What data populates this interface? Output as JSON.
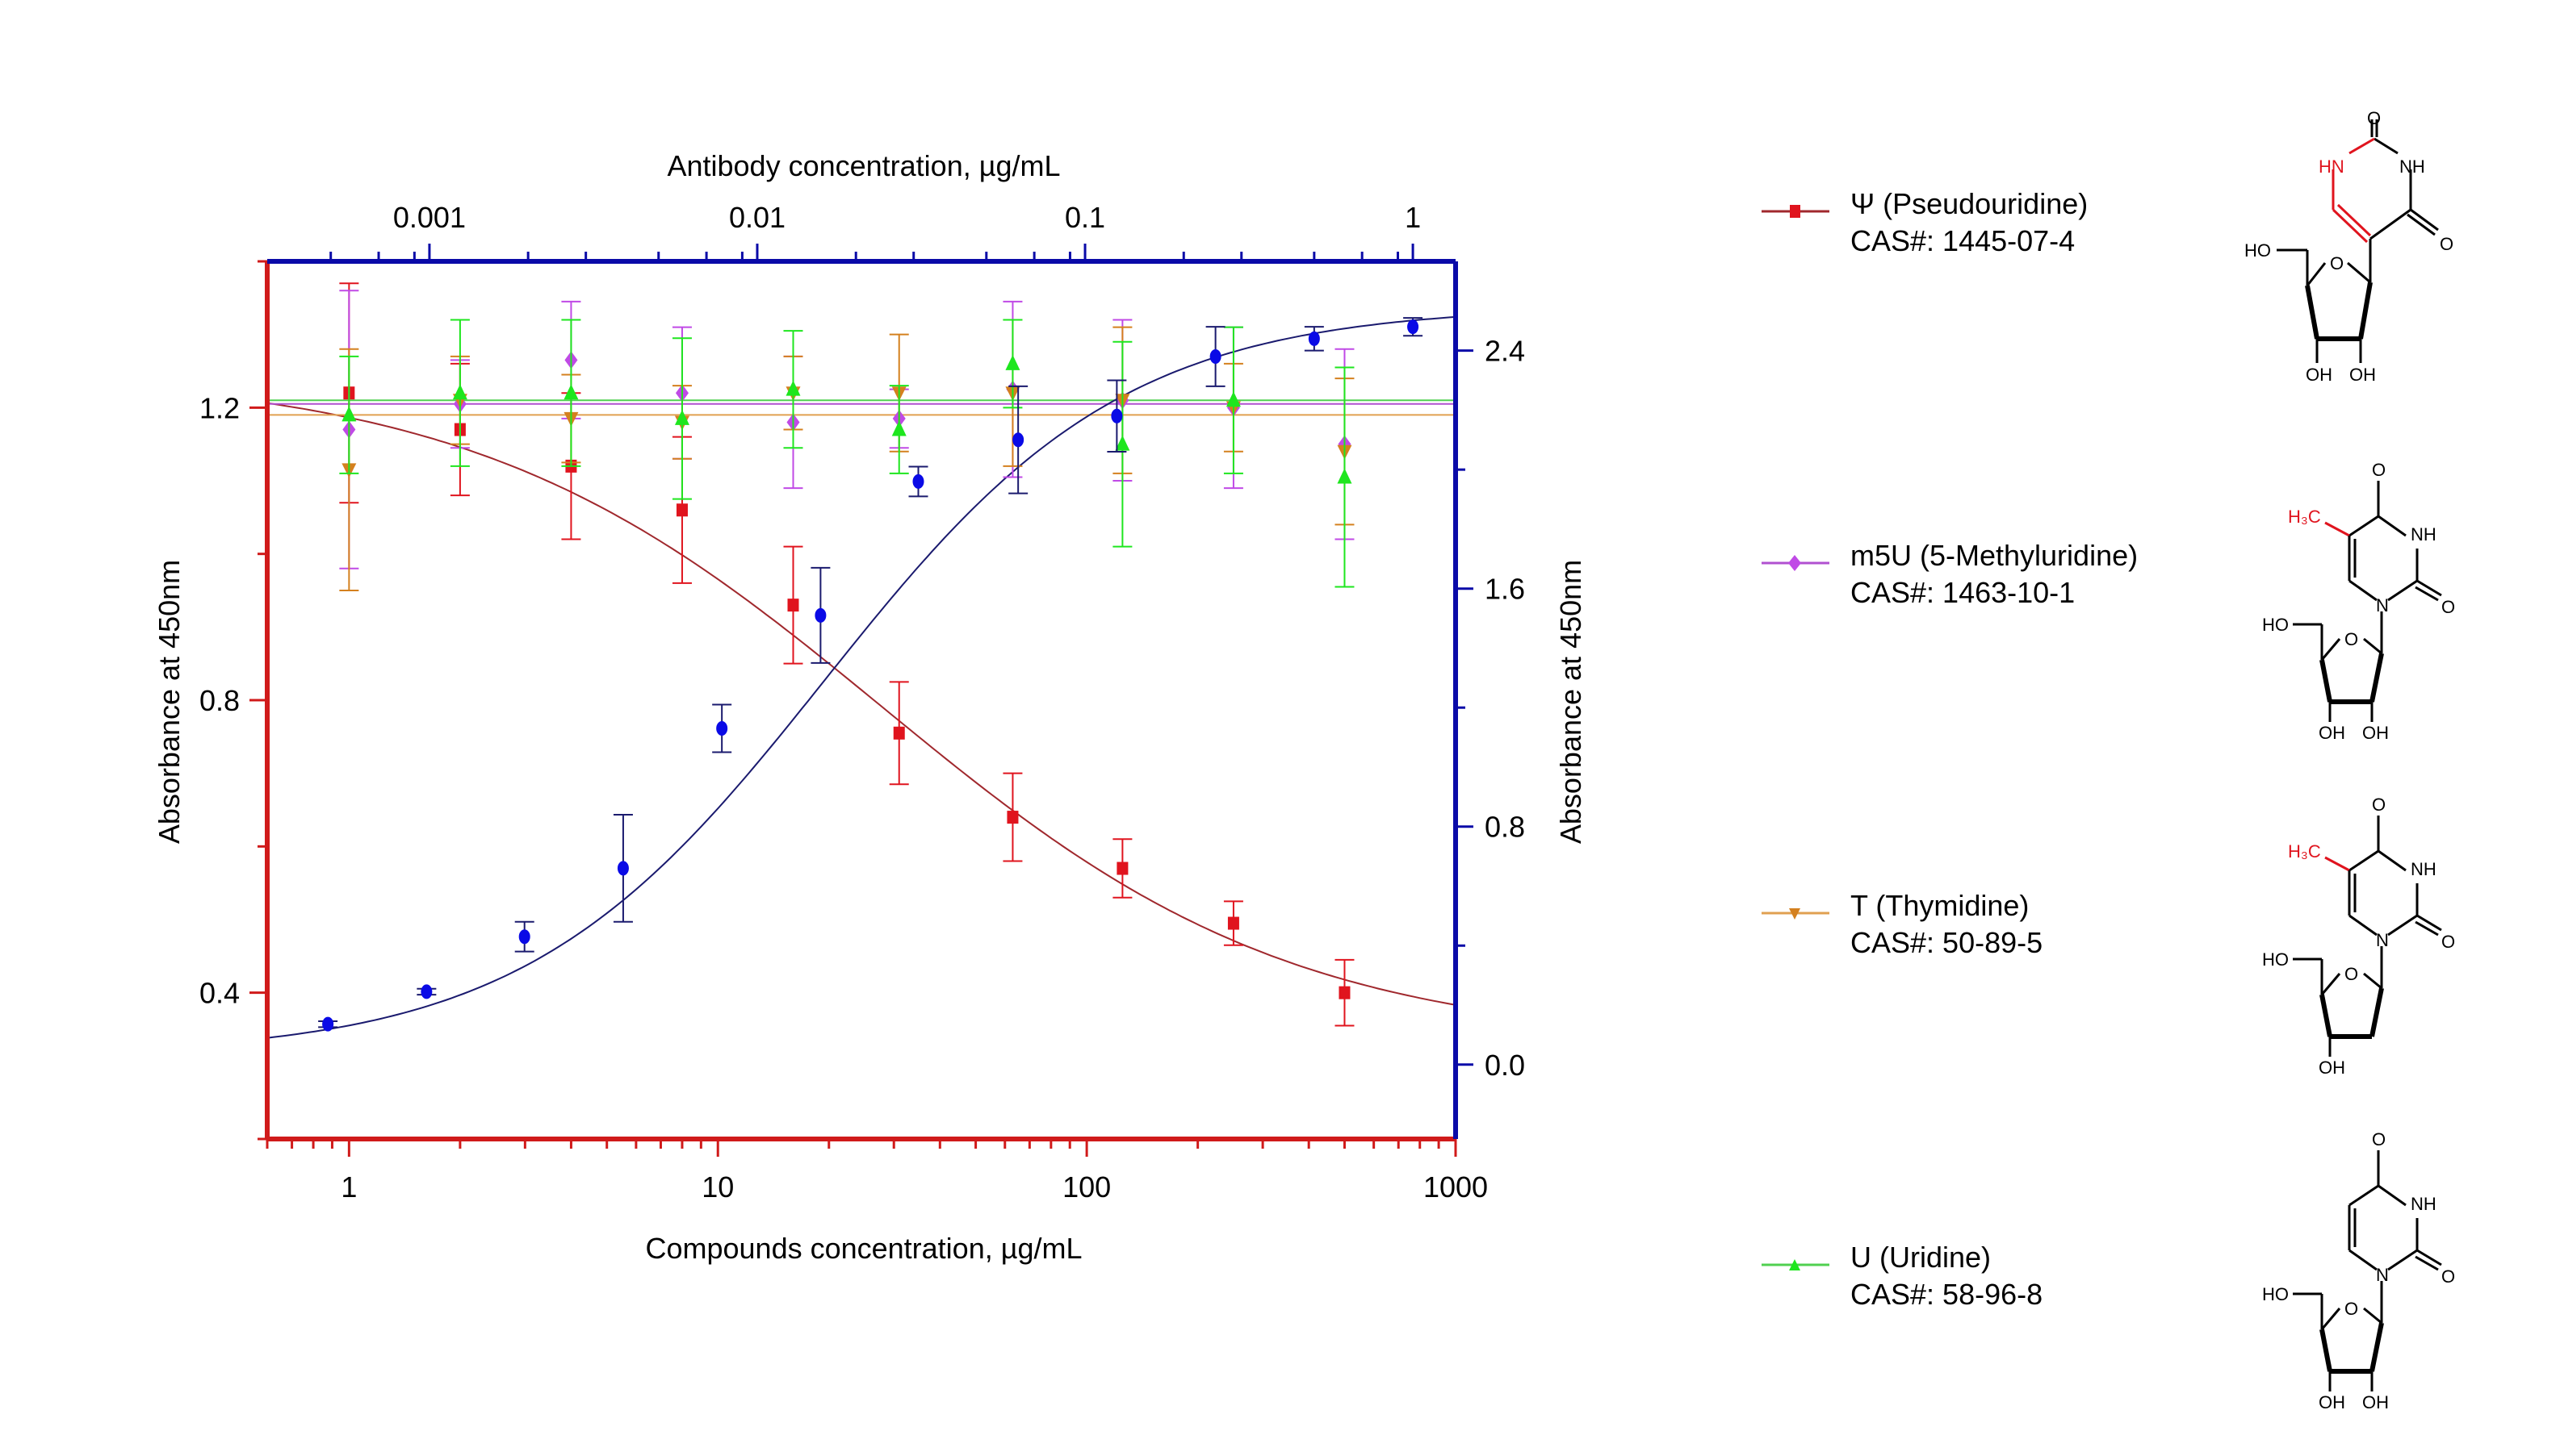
{
  "chart_data": {
    "type": "scatter",
    "title": "",
    "xlabel": "Compounds concentration, µg/mL",
    "x2label": "Antibody concentration, µg/mL",
    "ylabel": "Absorbance at 450nm",
    "y2label": "Absorbance at 450nm",
    "xscale": "log",
    "xlim": [
      0.6,
      1000
    ],
    "x2lim": [
      0.00032,
      1.35
    ],
    "ylim": [
      0.2,
      1.4
    ],
    "y2lim": [
      -0.25,
      2.7
    ],
    "x_ticks": [
      "1",
      "10",
      "100",
      "1000"
    ],
    "x2_ticks": [
      "0.001",
      "0.01",
      "0.1",
      "1"
    ],
    "y_ticks": [
      "0.4",
      "0.8",
      "1.2"
    ],
    "y2_ticks": [
      "0.0",
      "0.8",
      "1.6",
      "2.4"
    ],
    "grid": false,
    "legend_position": "right",
    "series": [
      {
        "name": "Ψ (Pseudouridine)",
        "cas": "CAS#:  1445-07-4",
        "color": "#e0141e",
        "line_color": "#a0282d",
        "marker": "square",
        "axis": "left-bottom",
        "x": [
          1,
          2,
          4,
          8,
          16,
          31,
          63,
          125,
          250,
          500
        ],
        "y": [
          1.22,
          1.17,
          1.12,
          1.06,
          0.93,
          0.755,
          0.64,
          0.57,
          0.495,
          0.4
        ],
        "err": [
          0.15,
          0.09,
          0.1,
          0.1,
          0.08,
          0.07,
          0.06,
          0.04,
          0.03,
          0.045
        ],
        "fit": {
          "top": 1.25,
          "bottom": 0.33,
          "ec50": 28,
          "hill": 0.78
        }
      },
      {
        "name": "m5U (5-Methyluridine)",
        "cas": "CAS#: 1463-10-1",
        "color": "#c04ae6",
        "line_color": "#b050d0",
        "marker": "diamond",
        "axis": "left-bottom",
        "x": [
          1,
          2,
          4,
          8,
          16,
          31,
          63,
          125,
          250,
          500
        ],
        "y": [
          1.17,
          1.205,
          1.265,
          1.22,
          1.18,
          1.185,
          1.225,
          1.21,
          1.2,
          1.15
        ],
        "err": [
          0.19,
          0.06,
          0.08,
          0.09,
          0.09,
          0.04,
          0.12,
          0.11,
          0.11,
          0.13
        ],
        "fit_level": 1.205
      },
      {
        "name": "T (Thymidine)",
        "cas": "CAS#: 50-89-5",
        "color": "#d4801e",
        "line_color": "#e0a050",
        "marker": "triangle-down",
        "axis": "left-bottom",
        "x": [
          1,
          2,
          4,
          8,
          16,
          31,
          63,
          125,
          250,
          500
        ],
        "y": [
          1.115,
          1.21,
          1.185,
          1.18,
          1.22,
          1.22,
          1.22,
          1.21,
          1.2,
          1.14
        ],
        "err": [
          0.165,
          0.06,
          0.06,
          0.05,
          0.05,
          0.08,
          0.1,
          0.1,
          0.06,
          0.1
        ],
        "fit_level": 1.19
      },
      {
        "name": "U (Uridine)",
        "cas": "CAS#: 58-96-8",
        "color": "#1ee61e",
        "line_color": "#50d050",
        "marker": "triangle-up",
        "axis": "left-bottom",
        "x": [
          1,
          2,
          4,
          8,
          16,
          31,
          63,
          125,
          250,
          500
        ],
        "y": [
          1.19,
          1.22,
          1.22,
          1.185,
          1.225,
          1.17,
          1.26,
          1.15,
          1.21,
          1.105
        ],
        "err": [
          0.08,
          0.1,
          0.1,
          0.11,
          0.08,
          0.06,
          0.06,
          0.14,
          0.1,
          0.15
        ],
        "fit_level": 1.21
      },
      {
        "name": "Antibody",
        "color": "#0a0ae6",
        "line_color": "#1a1a6e",
        "marker": "circle",
        "axis": "right-top",
        "x": [
          0.00049,
          0.00098,
          0.00195,
          0.0039,
          0.0078,
          0.0156,
          0.031,
          0.0625,
          0.125,
          0.25,
          0.5,
          1
        ],
        "y": [
          0.136,
          0.245,
          0.43,
          0.66,
          1.13,
          1.51,
          1.96,
          2.1,
          2.18,
          2.38,
          2.44,
          2.48
        ],
        "err": [
          0.01,
          0.01,
          0.05,
          0.18,
          0.08,
          0.16,
          0.05,
          0.18,
          0.12,
          0.1,
          0.04,
          0.03
        ],
        "fit": {
          "top": 2.55,
          "bottom": 0.03,
          "ec50": 0.016,
          "hill": 0.95
        }
      }
    ]
  },
  "legend": [
    {
      "name": "Ψ (Pseudouridine)",
      "cas": "CAS#:  1445-07-4",
      "molecule": "pseudouridine-structure",
      "highlight": "HN"
    },
    {
      "name": "m5U (5-Methyluridine)",
      "cas": "CAS#: 1463-10-1",
      "molecule": "5-methyluridine-structure",
      "highlight": "H3C"
    },
    {
      "name": "T (Thymidine)",
      "cas": "CAS#: 50-89-5",
      "molecule": "thymidine-structure",
      "highlight": "H3C"
    },
    {
      "name": "U (Uridine)",
      "cas": "CAS#: 58-96-8",
      "molecule": "uridine-structure",
      "highlight": ""
    }
  ],
  "molecule_labels": {
    "o": "O",
    "nh": "NH",
    "hn": "HN",
    "n": "N",
    "ho": "HO",
    "oh": "OH",
    "h3c": "H₃C"
  }
}
